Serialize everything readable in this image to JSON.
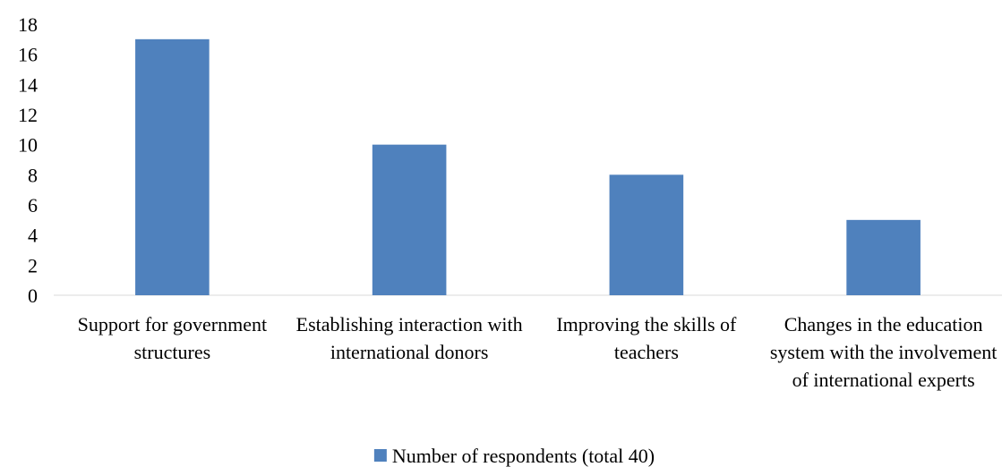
{
  "chart_data": {
    "type": "bar",
    "categories": [
      "Support for government structures",
      "Establishing interaction with international donors",
      "Improving the skills of teachers",
      "Changes in the education system with the involvement of international experts"
    ],
    "series": [
      {
        "name": "Number of respondents (total 40)",
        "color": "#4f81bd",
        "values": [
          17,
          10,
          8,
          5
        ]
      }
    ],
    "ylim": [
      0,
      18
    ],
    "yticks": [
      0,
      2,
      4,
      6,
      8,
      10,
      12,
      14,
      16,
      18
    ],
    "grid": false,
    "legend": "bottom"
  }
}
